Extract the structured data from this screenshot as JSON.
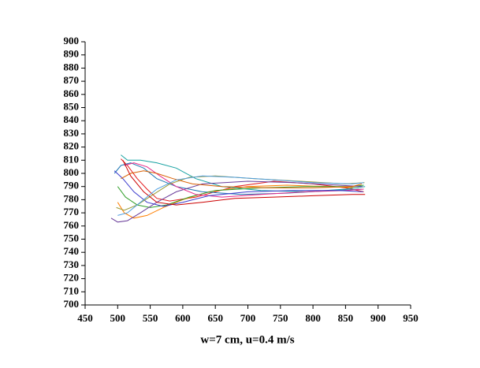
{
  "chart_data": {
    "type": "line",
    "xlabel": "w=7 cm, u=0.4 m/s",
    "xlim": [
      450,
      950
    ],
    "xticks": [
      450,
      500,
      550,
      600,
      650,
      700,
      750,
      800,
      850,
      900,
      950
    ],
    "ylim": [
      700,
      900
    ],
    "yticks": [
      700,
      710,
      720,
      730,
      740,
      750,
      760,
      770,
      780,
      790,
      800,
      810,
      820,
      830,
      840,
      850,
      860,
      870,
      880,
      890,
      900
    ],
    "series": [
      {
        "color": "#e41a1c",
        "x": [
          505,
          515,
          530,
          545,
          560,
          580,
          620,
          680,
          740,
          800,
          850,
          878
        ],
        "values": [
          811,
          806,
          796,
          788,
          781,
          779,
          782,
          790,
          794,
          792,
          789,
          786
        ]
      },
      {
        "color": "#ff7f00",
        "x": [
          500,
          510,
          525,
          545,
          570,
          600,
          640,
          700,
          760,
          820,
          870
        ],
        "values": [
          778,
          770,
          766,
          768,
          774,
          780,
          786,
          790,
          791,
          790,
          789
        ]
      },
      {
        "color": "#1f78b4",
        "x": [
          495,
          505,
          520,
          540,
          560,
          590,
          630,
          690,
          760,
          830,
          875
        ],
        "values": [
          800,
          806,
          808,
          804,
          796,
          790,
          786,
          784,
          785,
          787,
          788
        ]
      },
      {
        "color": "#17a2a2",
        "x": [
          505,
          515,
          535,
          560,
          590,
          620,
          660,
          720,
          790,
          850,
          880
        ],
        "values": [
          814,
          810,
          810,
          808,
          804,
          796,
          790,
          787,
          786,
          788,
          790
        ]
      },
      {
        "color": "#33a02c",
        "x": [
          500,
          512,
          530,
          550,
          575,
          610,
          650,
          720,
          790,
          860,
          878
        ],
        "values": [
          790,
          782,
          776,
          774,
          776,
          782,
          787,
          789,
          790,
          790,
          791
        ]
      },
      {
        "color": "#6a3d9a",
        "x": [
          490,
          500,
          515,
          535,
          560,
          590,
          630,
          700,
          770,
          840,
          876
        ],
        "values": [
          766,
          763,
          764,
          770,
          778,
          786,
          792,
          794,
          793,
          791,
          790
        ]
      },
      {
        "color": "#e7298a",
        "x": [
          510,
          525,
          545,
          565,
          590,
          620,
          660,
          720,
          790,
          850,
          878
        ],
        "values": [
          806,
          808,
          805,
          798,
          790,
          784,
          782,
          784,
          786,
          787,
          788
        ]
      },
      {
        "color": "#3a3acc",
        "x": [
          495,
          508,
          525,
          545,
          570,
          600,
          640,
          700,
          770,
          840,
          877
        ],
        "values": [
          802,
          796,
          786,
          778,
          775,
          778,
          783,
          786,
          787,
          787,
          786
        ]
      },
      {
        "color": "#999933",
        "x": [
          498,
          510,
          530,
          555,
          580,
          610,
          650,
          710,
          780,
          850,
          879
        ],
        "values": [
          774,
          772,
          776,
          784,
          792,
          797,
          798,
          796,
          794,
          792,
          793
        ]
      },
      {
        "color": "#d95f02",
        "x": [
          505,
          520,
          540,
          560,
          585,
          615,
          660,
          730,
          800,
          860,
          875
        ],
        "values": [
          796,
          800,
          802,
          800,
          796,
          792,
          790,
          789,
          789,
          790,
          792
        ]
      },
      {
        "color": "#cc0000",
        "x": [
          508,
          520,
          540,
          560,
          590,
          630,
          680,
          740,
          800,
          860,
          880
        ],
        "values": [
          810,
          798,
          786,
          778,
          776,
          778,
          781,
          782,
          783,
          784,
          784
        ]
      },
      {
        "color": "#4d9de0",
        "x": [
          500,
          515,
          535,
          560,
          590,
          630,
          680,
          740,
          800,
          860,
          878
        ],
        "values": [
          768,
          770,
          778,
          788,
          795,
          798,
          797,
          795,
          793,
          792,
          793
        ]
      }
    ]
  }
}
